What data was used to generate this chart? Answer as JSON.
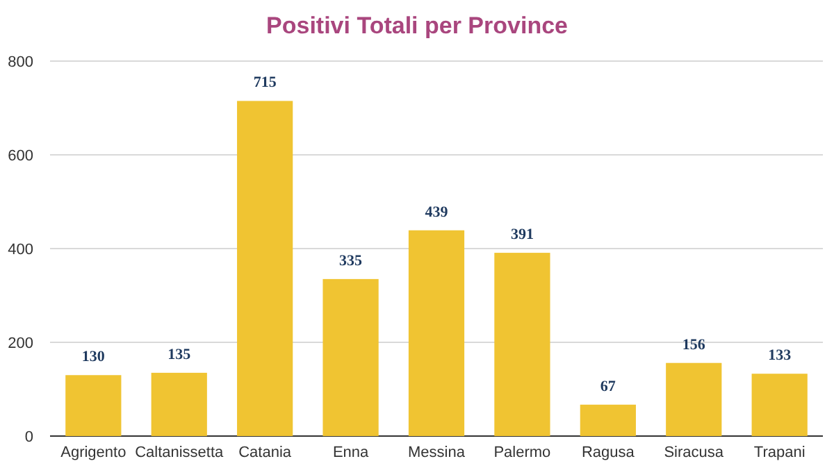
{
  "chart_data": {
    "type": "bar",
    "title": "Positivi Totali per Province",
    "categories": [
      "Agrigento",
      "Caltanissetta",
      "Catania",
      "Enna",
      "Messina",
      "Palermo",
      "Ragusa",
      "Siracusa",
      "Trapani"
    ],
    "values": [
      130,
      135,
      715,
      335,
      439,
      391,
      67,
      156,
      133
    ],
    "color": "#f0c432",
    "ylim": [
      0,
      800
    ],
    "yticks": [
      0,
      200,
      400,
      600,
      800
    ],
    "grid": "y",
    "data_labels": true
  }
}
